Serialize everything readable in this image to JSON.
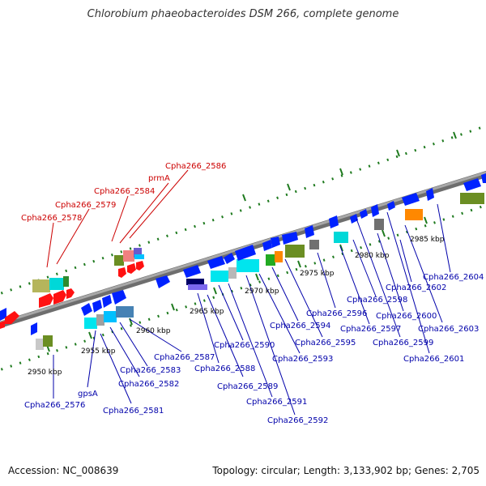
{
  "title": "Chlorobium phaeobacteroides DSM 266, complete genome",
  "footer": {
    "accession": "Accession: NC_008639",
    "topology": "Topology: circular; Length: 3,133,902 bp; Genes: 2,705"
  },
  "colors": {
    "highlight_label": "#cc0000",
    "gene_label": "#0000aa",
    "scale_label": "#000000",
    "backbone": "#8a8a8a",
    "ticks": "#1e7a1e"
  },
  "scale_labels": [
    "2950 kbp",
    "2955 kbp",
    "2960 kbp",
    "2965 kbp",
    "2970 kbp",
    "2975 kbp",
    "2980 kbp",
    "2985 kbp"
  ],
  "highlighted_genes": [
    "Cpha266_2578",
    "Cpha266_2579",
    "Cpha266_2584",
    "prmA",
    "Cpha266_2586"
  ],
  "genes": [
    "Cpha266_2576",
    "gpsA",
    "Cpha266_2581",
    "Cpha266_2582",
    "Cpha266_2583",
    "Cpha266_2587",
    "Cpha266_2588",
    "Cpha266_2589",
    "Cpha266_2590",
    "Cpha266_2591",
    "Cpha266_2592",
    "Cpha266_2593",
    "Cpha266_2594",
    "Cpha266_2595",
    "Cpha266_2596",
    "Cpha266_2597",
    "Cpha266_2598",
    "Cpha266_2599",
    "Cpha266_2600",
    "Cpha266_2601",
    "Cpha266_2602",
    "Cpha266_2603",
    "Cpha266_2604"
  ]
}
